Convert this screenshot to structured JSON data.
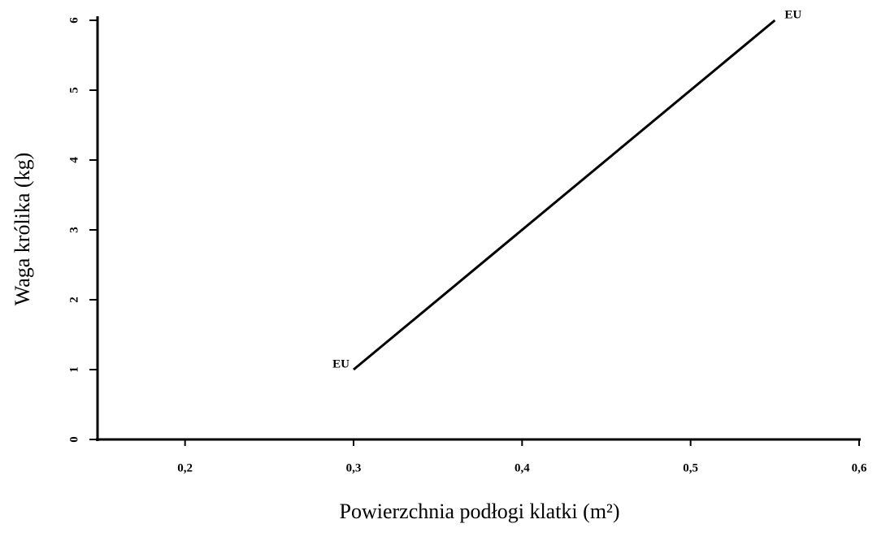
{
  "chart_data": {
    "type": "line",
    "x_label": "Powierzchnia podłogi klatki (m²)",
    "y_label": "Waga królika (kg)",
    "x": [
      0.3,
      0.55
    ],
    "series": [
      {
        "color": "#000000",
        "values": [
          1,
          6
        ]
      }
    ],
    "annotations": [
      "EU",
      "EU"
    ],
    "xlim": [
      0.15,
      0.6
    ],
    "xticks": [
      {
        "value": 0.2,
        "label": "0,2"
      },
      {
        "value": 0.3,
        "label": "0,3"
      },
      {
        "value": 0.4,
        "label": "0,4"
      },
      {
        "value": 0.5,
        "label": "0,5"
      },
      {
        "value": 0.6,
        "label": "0,6"
      }
    ],
    "ylim": [
      0,
      6
    ],
    "yticks": [
      0,
      1,
      2,
      3,
      4,
      5,
      6
    ],
    "grid": false
  }
}
